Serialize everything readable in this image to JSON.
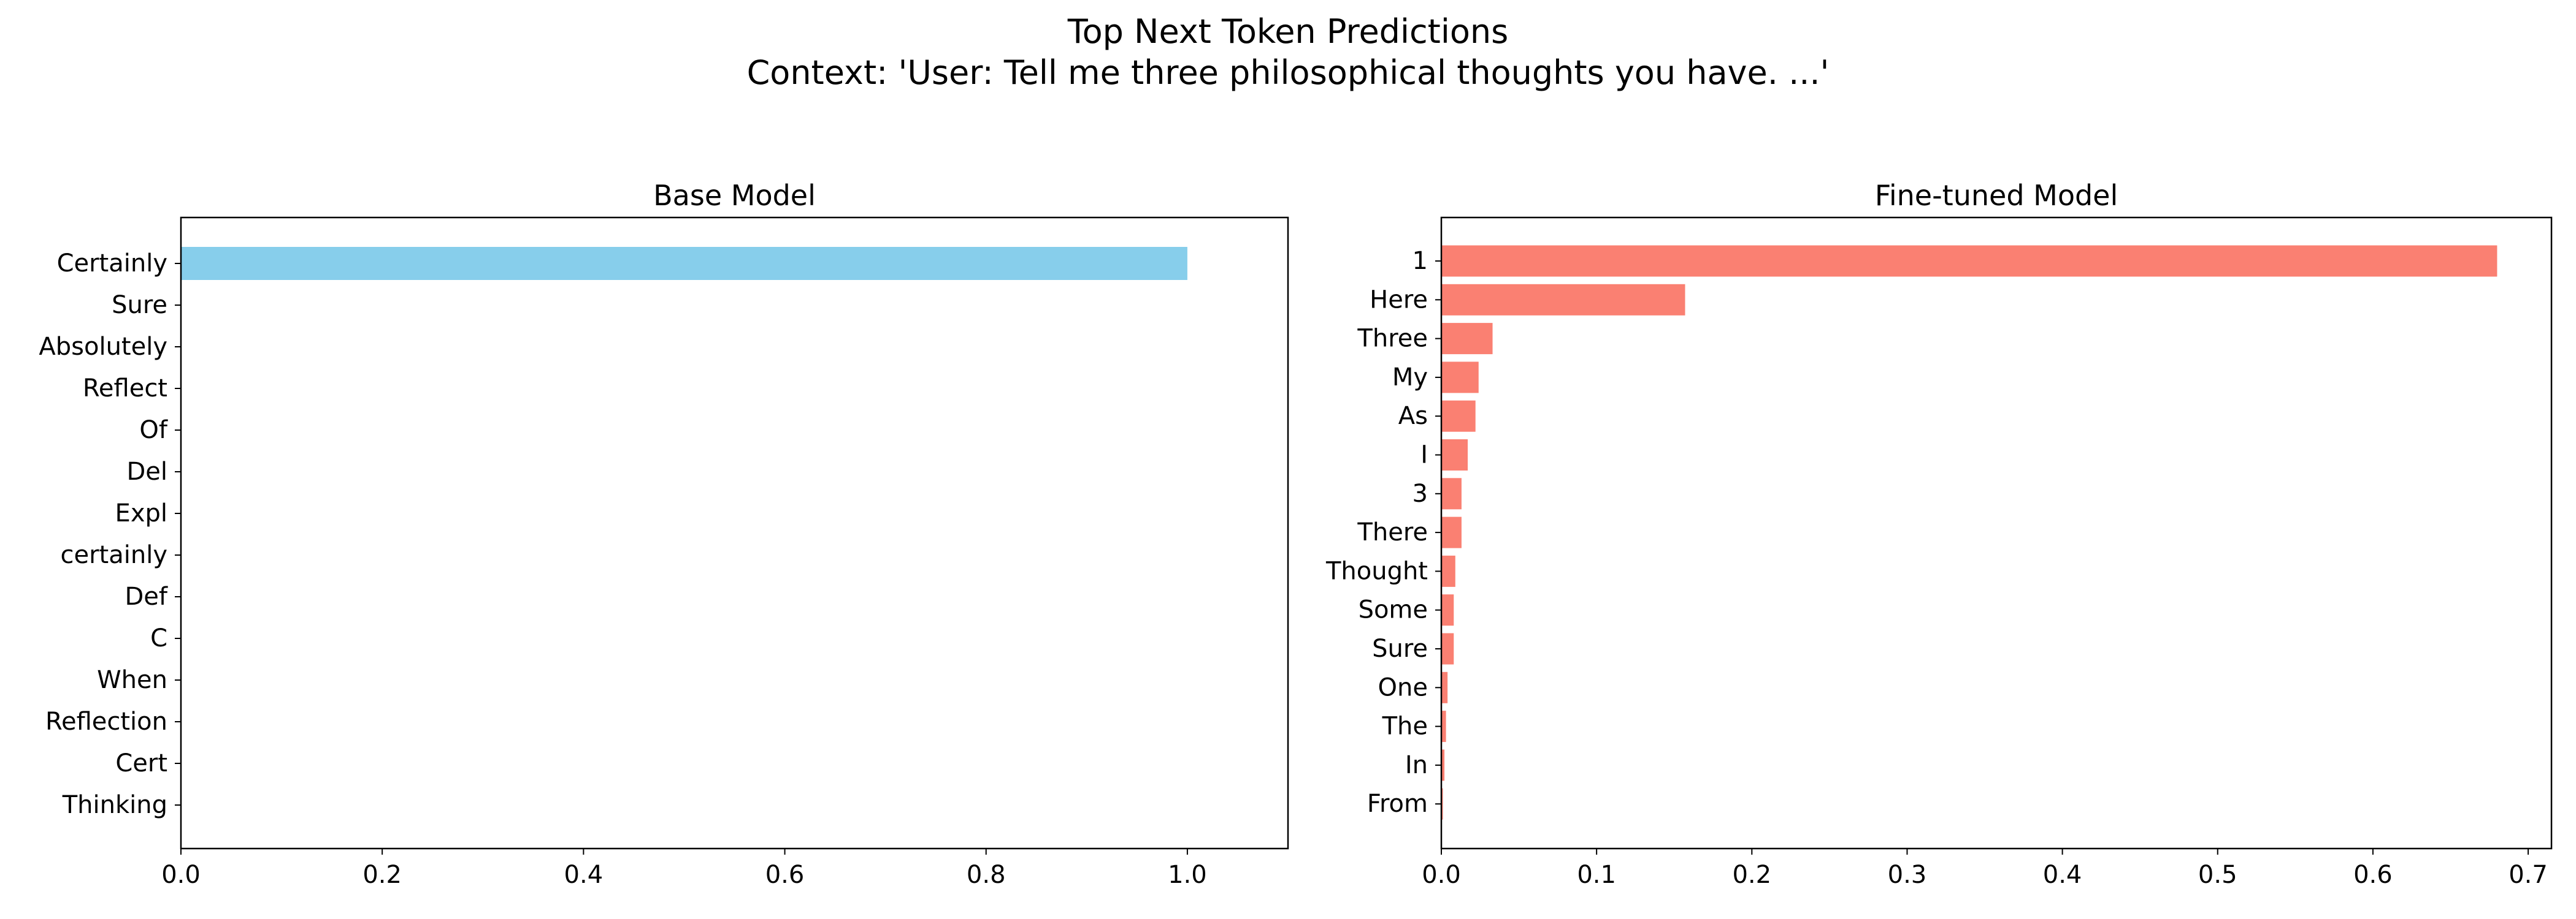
{
  "figure": {
    "title_line1": "Top Next Token Predictions",
    "title_line2": "Context: 'User: Tell me three philosophical thoughts you have. ...'"
  },
  "chart_data": [
    {
      "type": "bar",
      "orientation": "horizontal",
      "title": "Base Model",
      "color": "#87ceeb",
      "categories": [
        "Certainly",
        "Sure",
        "Absolutely",
        "Reflect",
        "Of",
        "Del",
        "Expl",
        "certainly",
        "Def",
        "C",
        "When",
        "Reflection",
        "Cert",
        "Thinking"
      ],
      "values": [
        1.0,
        0.0,
        0.0,
        0.0,
        0.0,
        0.0,
        0.0,
        0.0,
        0.0,
        0.0,
        0.0,
        0.0,
        0.0,
        0.0
      ],
      "xlim": [
        0,
        1.1
      ],
      "xticks": [
        0.0,
        0.2,
        0.4,
        0.6,
        0.8,
        1.0
      ],
      "xtick_labels": [
        "0.0",
        "0.2",
        "0.4",
        "0.6",
        "0.8",
        "1.0"
      ],
      "xlabel": "",
      "ylabel": "",
      "grid": false
    },
    {
      "type": "bar",
      "orientation": "horizontal",
      "title": "Fine-tuned Model",
      "color": "#fa8072",
      "categories": [
        "1",
        "Here",
        "Three",
        "My",
        "As",
        "I",
        "3",
        "There",
        "Thought",
        "Some",
        "Sure",
        "One",
        "The",
        "In",
        "From"
      ],
      "values": [
        0.68,
        0.157,
        0.033,
        0.024,
        0.022,
        0.017,
        0.013,
        0.013,
        0.009,
        0.008,
        0.008,
        0.004,
        0.003,
        0.002,
        0.001
      ],
      "xlim": [
        0,
        0.715
      ],
      "xticks": [
        0.0,
        0.1,
        0.2,
        0.3,
        0.4,
        0.5,
        0.6,
        0.7
      ],
      "xtick_labels": [
        "0.0",
        "0.1",
        "0.2",
        "0.3",
        "0.4",
        "0.5",
        "0.6",
        "0.7"
      ],
      "xlabel": "",
      "ylabel": "",
      "grid": false
    }
  ]
}
